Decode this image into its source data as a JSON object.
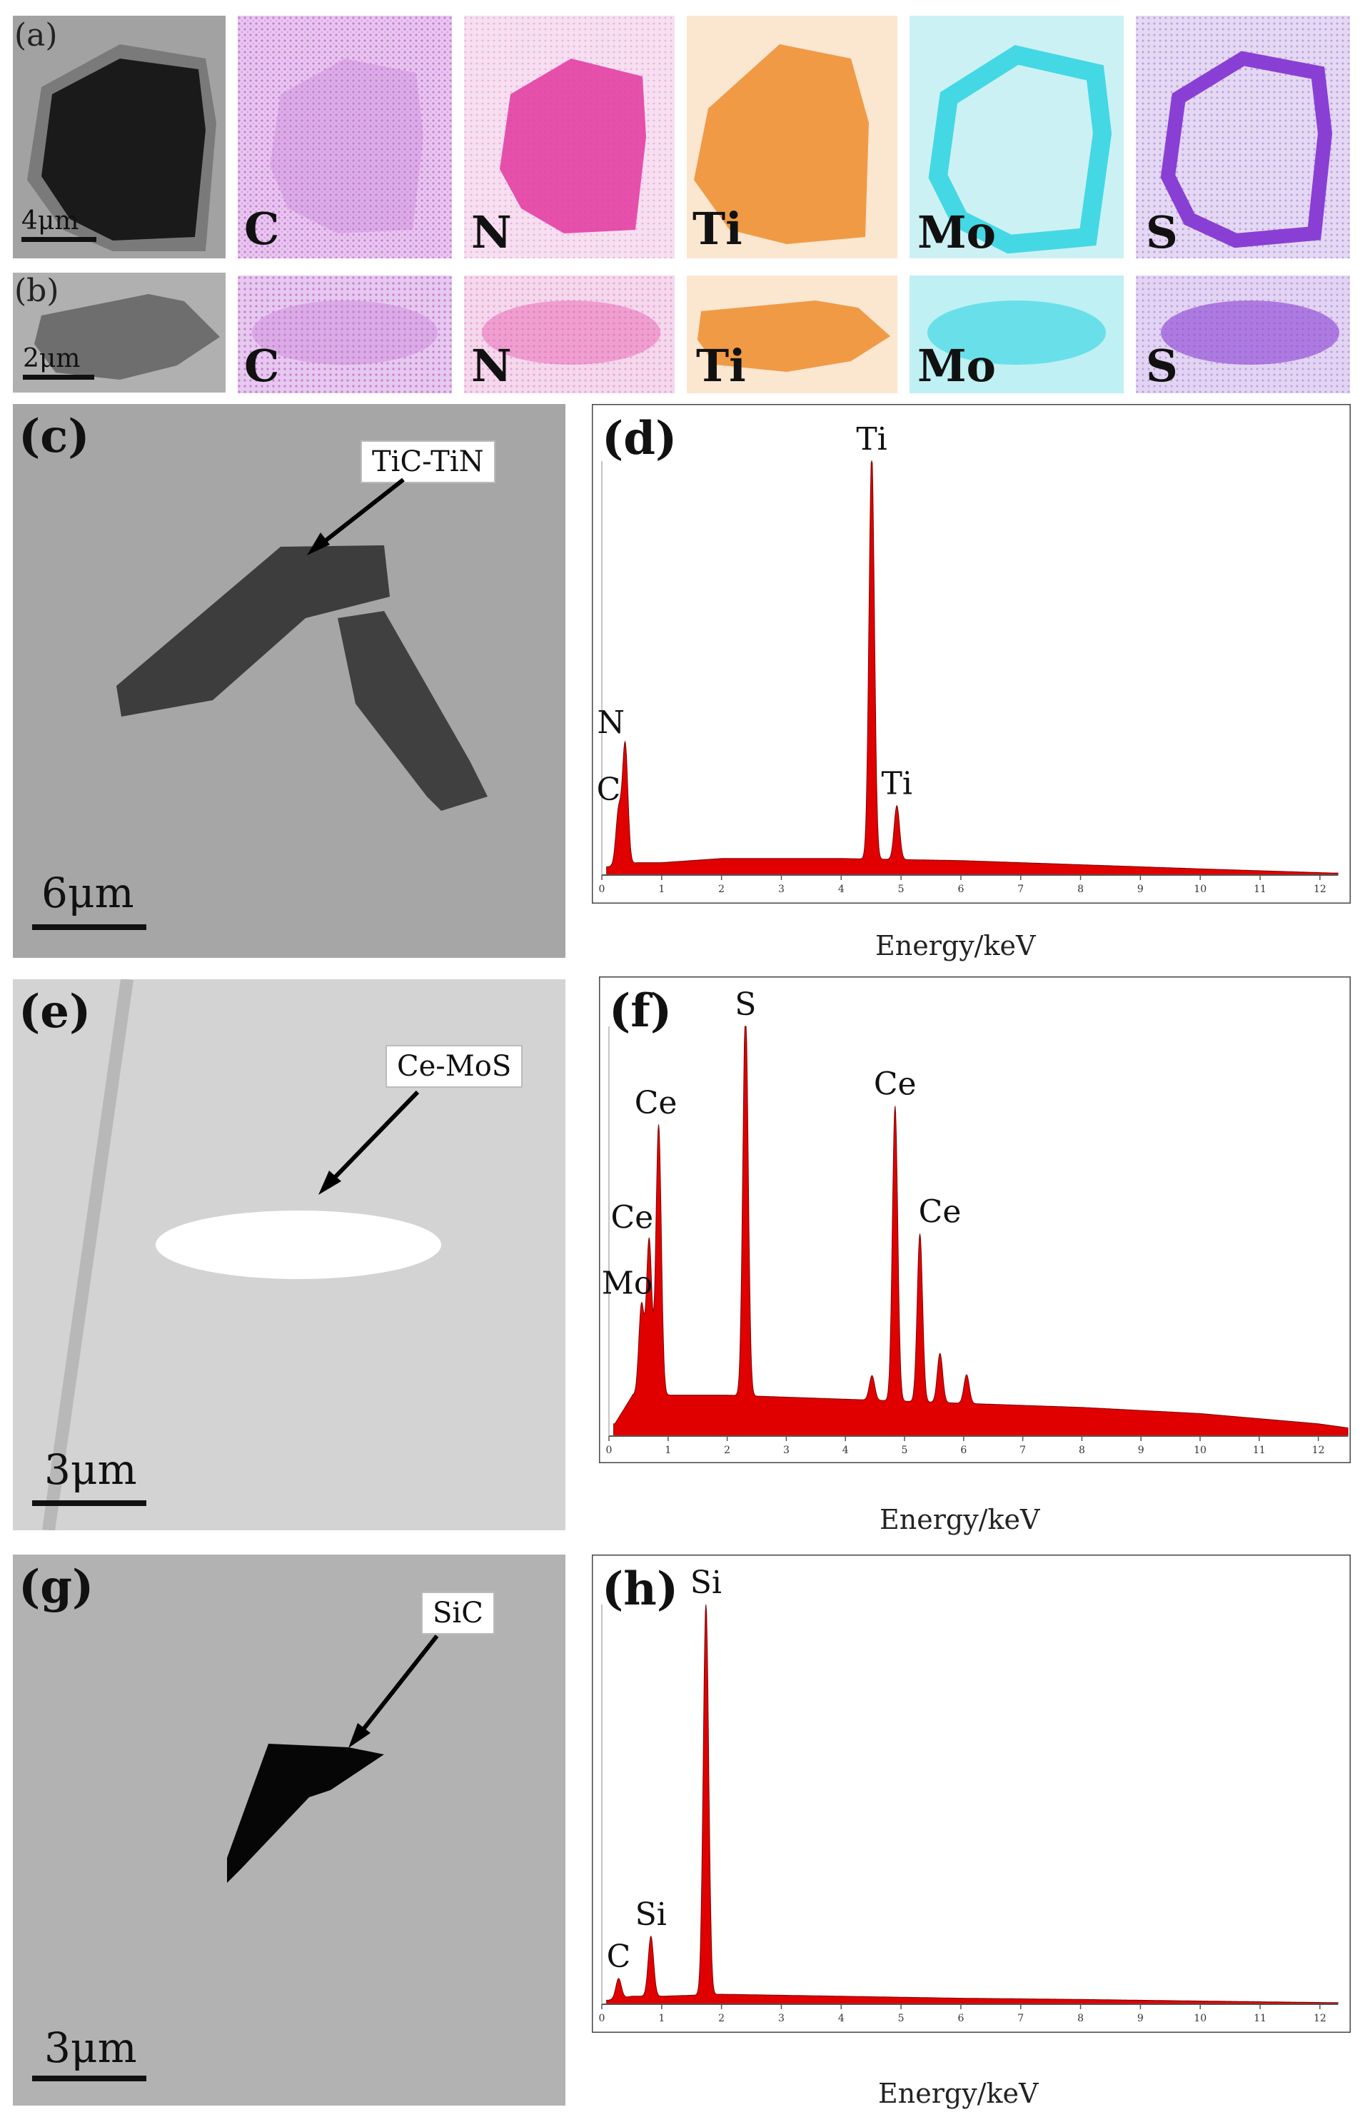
{
  "row_a": {
    "label": "(a)",
    "scale": "4μm",
    "maps": [
      "C",
      "N",
      "Ti",
      "Mo",
      "S"
    ],
    "map_colors": [
      "#c879d6",
      "#e2379f",
      "#f09a45",
      "#44d8e4",
      "#8a3fd4"
    ]
  },
  "row_b": {
    "label": "(b)",
    "scale": "2μm",
    "maps": [
      "C",
      "N",
      "Ti",
      "Mo",
      "S"
    ]
  },
  "panel_c": {
    "label": "(c)",
    "callout": "TiC-TiN",
    "scale": "6μm"
  },
  "panel_e": {
    "label": "(e)",
    "callout": "Ce-MoS",
    "scale": "3μm"
  },
  "panel_g": {
    "label": "(g)",
    "callout": "SiC",
    "scale": "3μm"
  },
  "spectrum_color": "#e00000",
  "chart_data": [
    {
      "panel": "(d)",
      "type": "area",
      "xlabel": "Energy/keV",
      "xlim": [
        0,
        12.3
      ],
      "xticks": [
        0,
        1,
        2,
        3,
        4,
        5,
        6,
        7,
        8,
        9,
        10,
        11,
        12
      ],
      "peaks": [
        {
          "label": "C",
          "x": 0.28,
          "y": 0.13
        },
        {
          "label": "N",
          "x": 0.39,
          "y": 0.29
        },
        {
          "label": "Ti",
          "x": 4.51,
          "y": 0.98
        },
        {
          "label": "Ti",
          "x": 4.93,
          "y": 0.13
        }
      ],
      "background": [
        [
          0.1,
          0.02
        ],
        [
          0.6,
          0.03
        ],
        [
          1.0,
          0.03
        ],
        [
          2.0,
          0.04
        ],
        [
          3.0,
          0.04
        ],
        [
          4.0,
          0.04
        ],
        [
          6.0,
          0.035
        ],
        [
          8.0,
          0.025
        ],
        [
          10.0,
          0.015
        ],
        [
          12.2,
          0.005
        ]
      ]
    },
    {
      "panel": "(f)",
      "type": "area",
      "xlabel": "Energy/keV",
      "xlim": [
        0,
        12.5
      ],
      "xticks": [
        0,
        1,
        2,
        3,
        4,
        5,
        6,
        7,
        8,
        9,
        10,
        11,
        12
      ],
      "peaks": [
        {
          "label": "Mo",
          "x": 0.55,
          "y": 0.22
        },
        {
          "label": "Ce",
          "x": 0.68,
          "y": 0.38
        },
        {
          "label": "Ce",
          "x": 0.84,
          "y": 0.66
        },
        {
          "label": "S",
          "x": 2.31,
          "y": 0.95
        },
        {
          "label": "Ce",
          "x": 4.84,
          "y": 0.72
        },
        {
          "label": "Ce",
          "x": 5.26,
          "y": 0.41
        },
        {
          "label": "",
          "x": 5.6,
          "y": 0.12
        },
        {
          "label": "",
          "x": 6.05,
          "y": 0.07
        },
        {
          "label": "",
          "x": 4.45,
          "y": 0.06
        }
      ],
      "background": [
        [
          0.1,
          0.03
        ],
        [
          0.4,
          0.1
        ],
        [
          1.0,
          0.1
        ],
        [
          2.0,
          0.1
        ],
        [
          3.0,
          0.095
        ],
        [
          4.0,
          0.09
        ],
        [
          5.0,
          0.085
        ],
        [
          6.0,
          0.08
        ],
        [
          8.0,
          0.07
        ],
        [
          10.0,
          0.055
        ],
        [
          12.0,
          0.03
        ],
        [
          12.5,
          0.02
        ]
      ]
    },
    {
      "panel": "(h)",
      "type": "area",
      "xlabel": "Energy/keV",
      "xlim": [
        0,
        12.3
      ],
      "xticks": [
        0,
        1,
        2,
        3,
        4,
        5,
        6,
        7,
        8,
        9,
        10,
        11,
        12
      ],
      "peaks": [
        {
          "label": "C",
          "x": 0.28,
          "y": 0.05
        },
        {
          "label": "Si",
          "x": 0.82,
          "y": 0.15
        },
        {
          "label": "Si",
          "x": 1.74,
          "y": 0.98
        }
      ],
      "background": [
        [
          0.1,
          0.01
        ],
        [
          0.5,
          0.02
        ],
        [
          1.0,
          0.02
        ],
        [
          2.0,
          0.025
        ],
        [
          4.0,
          0.02
        ],
        [
          6.0,
          0.015
        ],
        [
          8.0,
          0.012
        ],
        [
          10.0,
          0.008
        ],
        [
          12.2,
          0.004
        ]
      ]
    }
  ]
}
